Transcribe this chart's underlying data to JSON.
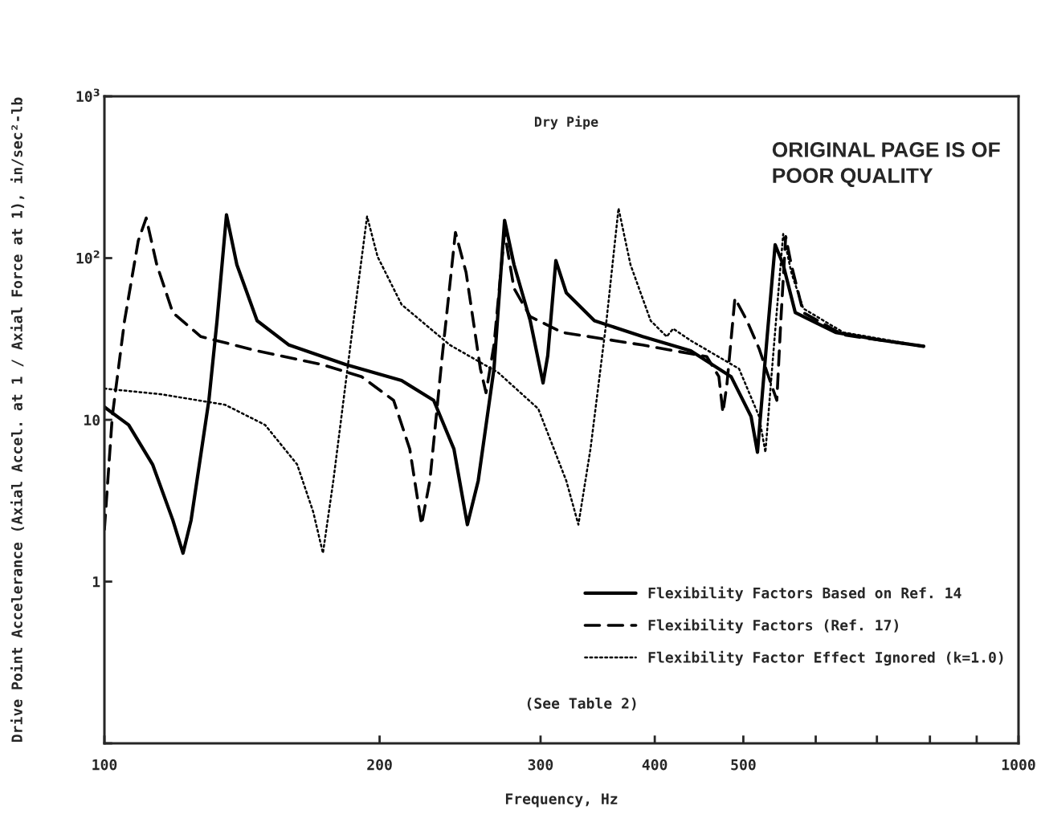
{
  "chart_data": {
    "type": "line",
    "title": "Dry Pipe",
    "xlabel": "Frequency, Hz",
    "ylabel": "Drive Point Accelerance (Axial Accel. at 1 / Axial Force at 1), in/sec²-lb",
    "log": "xy",
    "grid": false,
    "legend": "bottom right",
    "marker": "none",
    "xlim": [
      100,
      1000
    ],
    "ylim": [
      0.1,
      1000
    ],
    "xticks": [
      100,
      200,
      300,
      400,
      500,
      {
        "value": 600,
        "label": null
      },
      {
        "value": 700,
        "label": null
      },
      {
        "value": 800,
        "label": null
      },
      {
        "value": 900,
        "label": null
      },
      1000
    ],
    "yticks": [
      {
        "value": 0.1,
        "label": null
      },
      1,
      10,
      {
        "value": 100,
        "label": "10$^{2}$"
      },
      {
        "value": 1000,
        "label": "10$^{3}$"
      }
    ],
    "annotations": [
      "ORIGINAL PAGE IS OF POOR QUALITY",
      "(See Table 2)"
    ],
    "series": [
      {
        "name": "Flexibility Factors Based on Ref. 14",
        "color": "#000000",
        "line_style": "solid",
        "x": [
          100,
          106.3,
          112.9,
          118.8,
          121.9,
          124.4,
          130.1,
          132.8,
          136.0,
          139.6,
          146.9,
          159.2,
          183.5,
          211.4,
          229.2,
          241.2,
          249.5,
          256.4,
          266.8,
          274.0,
          280.6,
          292.3,
          301.9,
          305.5,
          311.8,
          320.1,
          343.6,
          388.0,
          438.0,
          484.8,
          509.8,
          518.1,
          530.9,
          541.7,
          552.8,
          569.9,
          630.9,
          712.0,
          787.5
        ],
        "values": [
          12.0,
          9.3,
          5.3,
          2.4,
          1.5,
          2.4,
          13.2,
          41,
          185,
          91,
          41,
          29,
          22,
          17.5,
          13.2,
          6.6,
          2.25,
          4.2,
          20.7,
          171,
          91,
          41,
          16.9,
          25,
          96.6,
          61,
          41,
          32.7,
          26.7,
          18.5,
          10.5,
          6.3,
          32.7,
          121,
          91,
          46,
          34.7,
          30.9,
          28.5
        ]
      },
      {
        "name": "Flexibility Factors (Ref. 17)",
        "color": "#000000",
        "line_style": "dashed",
        "x": [
          100,
          102.0,
          105.2,
          108.9,
          111.1,
          114.1,
          118.8,
          127.5,
          146.9,
          172.7,
          191.1,
          207.2,
          215.8,
          222.3,
          227.0,
          233.9,
          242.1,
          248.7,
          257.8,
          261.5,
          266.8,
          274.0,
          280.6,
          292.3,
          316.9,
          388.0,
          456.0,
          470.1,
          474.9,
          479.7,
          489.5,
          504.6,
          520.2,
          530.9,
          544.0,
          549.5,
          556.3,
          564.2,
          581.5,
          643.3,
          787.5
        ],
        "values": [
          2.1,
          10.5,
          41,
          128,
          177,
          91,
          46,
          32.7,
          26.7,
          22,
          18.5,
          13.2,
          6.6,
          2.25,
          4.2,
          23.2,
          144,
          81.5,
          20.7,
          14.7,
          29,
          144,
          65,
          43.5,
          34.7,
          29,
          24.6,
          18.5,
          11.1,
          16.5,
          56.5,
          41,
          27.6,
          19.6,
          13.2,
          41,
          136,
          91,
          46,
          33.5,
          28.5
        ]
      },
      {
        "name": "Flexibility Factor Effect Ignored (k=1.0)",
        "color": "#000000",
        "line_style": "dotted",
        "x": [
          100,
          115.2,
          135.5,
          149.9,
          162.5,
          169.2,
          173.4,
          178.0,
          187.3,
          193.8,
          199.0,
          211.4,
          238.8,
          269.6,
          298.3,
          320.1,
          330.0,
          340.2,
          354.2,
          365.1,
          376.3,
          395.9,
          412.2,
          419.0,
          438.0,
          494.6,
          520.2,
          528.6,
          538.4,
          552.8,
          564.2,
          581.5,
          643.3,
          787.5
        ],
        "values": [
          15.6,
          14.4,
          12.4,
          9.3,
          5.3,
          2.7,
          1.5,
          4.2,
          41,
          181,
          102,
          51.6,
          29,
          19.6,
          11.7,
          4.2,
          2.25,
          6.6,
          41,
          203,
          91,
          41,
          32.7,
          36.6,
          30.9,
          20.7,
          10.5,
          6.3,
          23.2,
          141,
          81.5,
          48.8,
          34.7,
          28.5
        ]
      }
    ]
  }
}
